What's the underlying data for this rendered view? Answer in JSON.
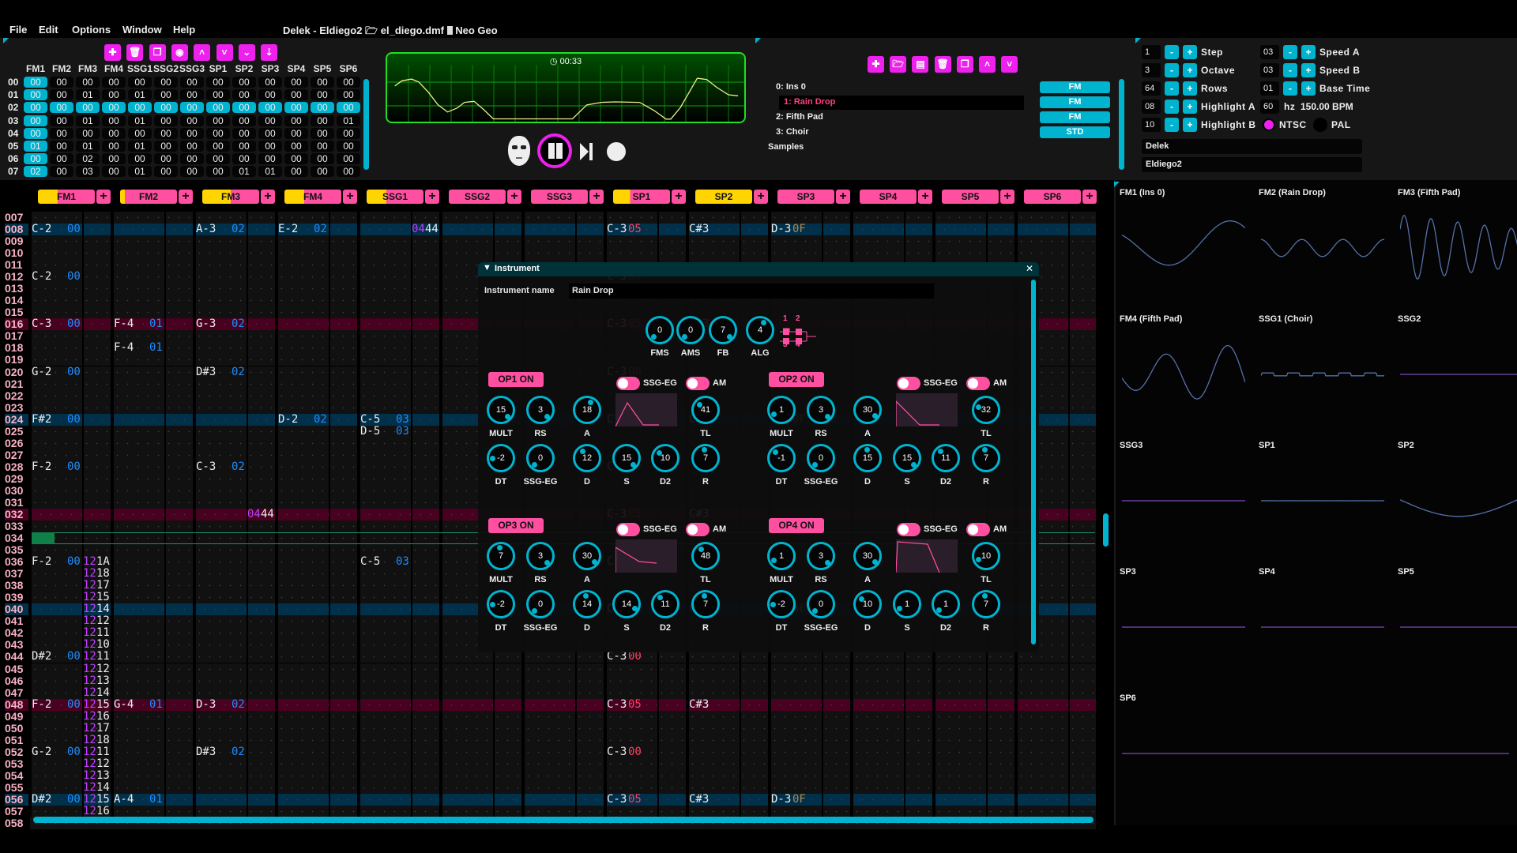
{
  "menu": [
    "File",
    "Edit",
    "Options",
    "Window",
    "Help"
  ],
  "window_title": {
    "song": "Delek - Eldiego2",
    "file": "el_diego.dmf",
    "system": "Neo Geo"
  },
  "colors": {
    "accent": "#00b4d0",
    "magenta": "#ee20ee",
    "pink": "#ff4fa0",
    "highlight_a": "#00304a",
    "highlight_b": "#4a0020",
    "scope_green": "#22dd22"
  },
  "orders": {
    "toolbar_icons": [
      "add-icon",
      "delete-icon",
      "duplicate-icon",
      "place-icon",
      "move-up-icon",
      "move-down-icon",
      "move-down-fast-icon",
      "sort-icon"
    ],
    "channels": [
      "FM1",
      "FM2",
      "FM3",
      "FM4",
      "SSG1",
      "SSG2",
      "SSG3",
      "SP1",
      "SP2",
      "SP3",
      "SP4",
      "SP5",
      "SP6"
    ],
    "rows": [
      {
        "num": "00",
        "values": [
          "00",
          "00",
          "00",
          "00",
          "00",
          "00",
          "00",
          "00",
          "00",
          "00",
          "00",
          "00",
          "00"
        ]
      },
      {
        "num": "01",
        "values": [
          "00",
          "00",
          "01",
          "00",
          "01",
          "00",
          "00",
          "00",
          "00",
          "00",
          "00",
          "00",
          "00"
        ]
      },
      {
        "num": "02",
        "values": [
          "00",
          "00",
          "00",
          "00",
          "00",
          "00",
          "00",
          "00",
          "00",
          "00",
          "00",
          "00",
          "00"
        ]
      },
      {
        "num": "03",
        "values": [
          "00",
          "00",
          "01",
          "00",
          "01",
          "00",
          "00",
          "00",
          "00",
          "00",
          "00",
          "00",
          "01"
        ]
      },
      {
        "num": "04",
        "values": [
          "00",
          "00",
          "00",
          "00",
          "00",
          "00",
          "00",
          "00",
          "00",
          "00",
          "00",
          "00",
          "00"
        ]
      },
      {
        "num": "05",
        "values": [
          "01",
          "00",
          "01",
          "00",
          "01",
          "00",
          "00",
          "00",
          "00",
          "00",
          "00",
          "00",
          "00"
        ]
      },
      {
        "num": "06",
        "values": [
          "00",
          "00",
          "02",
          "00",
          "00",
          "00",
          "00",
          "00",
          "00",
          "00",
          "00",
          "00",
          "00"
        ]
      },
      {
        "num": "07",
        "values": [
          "02",
          "00",
          "03",
          "00",
          "01",
          "00",
          "00",
          "00",
          "01",
          "01",
          "00",
          "00",
          "00"
        ]
      }
    ],
    "current_row": "02"
  },
  "scope": {
    "timer": "00:33"
  },
  "transport": {
    "icons": [
      "mask-icon",
      "pause-icon",
      "step-icon",
      "record-icon"
    ]
  },
  "instruments": {
    "toolbar_icons": [
      "add-icon",
      "open-icon",
      "save-icon",
      "delete-icon",
      "duplicate-icon",
      "move-up-icon",
      "move-down-icon"
    ],
    "items": [
      {
        "label": "0: Ins 0",
        "type": "FM"
      },
      {
        "label": "1: Rain Drop",
        "type": "FM",
        "selected": true
      },
      {
        "label": "2: Fifth Pad",
        "type": "FM"
      },
      {
        "label": "3: Choir",
        "type": "STD"
      }
    ],
    "samples_label": "Samples"
  },
  "settings": {
    "left": [
      {
        "value": "1",
        "label": "Step"
      },
      {
        "value": "3",
        "label": "Octave"
      },
      {
        "value": "64",
        "label": "Rows"
      },
      {
        "value": "08",
        "label": "Highlight A"
      },
      {
        "value": "10",
        "label": "Highlight B"
      }
    ],
    "right": [
      {
        "value": "03",
        "label": "Speed A"
      },
      {
        "value": "03",
        "label": "Speed B"
      },
      {
        "value": "01",
        "label": "Base Time"
      }
    ],
    "hz_value": "60",
    "hz_label": "hz",
    "bpm": "150.00 BPM",
    "ntsc": "NTSC",
    "pal": "PAL",
    "region_selected": "NTSC",
    "author": "Delek",
    "song_name": "Eldiego2",
    "minus": "-",
    "plus": "+"
  },
  "pattern": {
    "channels": [
      "FM1",
      "FM2",
      "FM3",
      "FM4",
      "SSG1",
      "SSG2",
      "SSG3",
      "SP1",
      "SP2",
      "SP3",
      "SP4",
      "SP5",
      "SP6"
    ],
    "add_label": "+",
    "rows": [
      "007",
      "008",
      "009",
      "010",
      "011",
      "012",
      "013",
      "014",
      "015",
      "016",
      "017",
      "018",
      "019",
      "020",
      "021",
      "022",
      "023",
      "024",
      "025",
      "026",
      "027",
      "028",
      "029",
      "030",
      "031",
      "032",
      "033",
      "034",
      "035",
      "036",
      "037",
      "038",
      "039",
      "040",
      "041",
      "042",
      "043",
      "044",
      "045",
      "046",
      "047",
      "048",
      "049",
      "050",
      "051",
      "052",
      "053",
      "054",
      "055",
      "056",
      "057",
      "058"
    ],
    "cursor_row": "034",
    "entries": [
      {
        "row": "008",
        "ch": "FM1",
        "note": "C-2",
        "ins": "00"
      },
      {
        "row": "008",
        "ch": "FM3",
        "note": "A-3",
        "ins": "02"
      },
      {
        "row": "008",
        "ch": "FM4",
        "note": "E-2",
        "ins": "02"
      },
      {
        "row": "008",
        "ch": "SSG1",
        "fx": {
          "cmd": "04",
          "val": "44"
        }
      },
      {
        "row": "008",
        "ch": "SP1",
        "note": "C-3",
        "vol": "05"
      },
      {
        "row": "008",
        "ch": "SP2",
        "note": "C#3"
      },
      {
        "row": "008",
        "ch": "SP3",
        "note": "D-3",
        "vol": "0F"
      },
      {
        "row": "012",
        "ch": "FM1",
        "note": "C-2",
        "ins": "00"
      },
      {
        "row": "012",
        "ch": "SP1",
        "note": "C-3",
        "vol": "00"
      },
      {
        "row": "016",
        "ch": "FM1",
        "note": "C-3",
        "ins": "00"
      },
      {
        "row": "016",
        "ch": "FM2",
        "note": "F-4",
        "ins": "01"
      },
      {
        "row": "016",
        "ch": "FM3",
        "note": "G-3",
        "ins": "02"
      },
      {
        "row": "016",
        "ch": "SP1",
        "note": "C-3",
        "vol": "05"
      },
      {
        "row": "016",
        "ch": "SP2",
        "note": "C#3"
      },
      {
        "row": "018",
        "ch": "FM2",
        "note": "F-4",
        "ins": "01"
      },
      {
        "row": "020",
        "ch": "FM1",
        "note": "G-2",
        "ins": "00"
      },
      {
        "row": "020",
        "ch": "FM3",
        "note": "D#3",
        "ins": "02"
      },
      {
        "row": "020",
        "ch": "SP1",
        "note": "C-3",
        "vol": "00"
      },
      {
        "row": "024",
        "ch": "FM1",
        "note": "F#2",
        "ins": "00"
      },
      {
        "row": "024",
        "ch": "FM4",
        "note": "D-2",
        "ins": "02"
      },
      {
        "row": "024",
        "ch": "SSG1",
        "note": "C-5",
        "ins": "03"
      },
      {
        "row": "024",
        "ch": "SP1",
        "note": "C-3",
        "vol": "05"
      },
      {
        "row": "024",
        "ch": "SP2",
        "note": "C#3"
      },
      {
        "row": "024",
        "ch": "SP3",
        "note": "D-3",
        "vol": "0F"
      },
      {
        "row": "025",
        "ch": "SSG1",
        "note": "D-5",
        "ins": "03"
      },
      {
        "row": "028",
        "ch": "FM1",
        "note": "F-2",
        "ins": "00"
      },
      {
        "row": "028",
        "ch": "FM3",
        "note": "C-3",
        "ins": "02"
      },
      {
        "row": "028",
        "ch": "SP1",
        "note": "C-3",
        "vol": "00"
      },
      {
        "row": "032",
        "ch": "FM3",
        "fx": {
          "cmd": "04",
          "val": "44"
        }
      },
      {
        "row": "032",
        "ch": "SP1",
        "note": "C-3",
        "vol": "05"
      },
      {
        "row": "032",
        "ch": "SP2",
        "note": "C#3"
      },
      {
        "row": "036",
        "ch": "FM1",
        "note": "F-2",
        "ins": "00",
        "fx": {
          "cmd": "12",
          "val": "1A"
        }
      },
      {
        "row": "036",
        "ch": "SSG1",
        "note": "C-5",
        "ins": "03"
      },
      {
        "row": "036",
        "ch": "SP1",
        "note": "C-3",
        "vol": "00"
      },
      {
        "row": "037",
        "ch": "FM1",
        "fx": {
          "cmd": "12",
          "val": "18"
        }
      },
      {
        "row": "038",
        "ch": "FM1",
        "fx": {
          "cmd": "12",
          "val": "17"
        }
      },
      {
        "row": "039",
        "ch": "FM1",
        "fx": {
          "cmd": "12",
          "val": "15"
        }
      },
      {
        "row": "040",
        "ch": "FM1",
        "fx": {
          "cmd": "12",
          "val": "14"
        }
      },
      {
        "row": "040",
        "ch": "SP1",
        "note": "C-3",
        "vol": "05"
      },
      {
        "row": "040",
        "ch": "SP2",
        "note": "C#3"
      },
      {
        "row": "040",
        "ch": "SP3",
        "note": "D-3",
        "vol": "0F"
      },
      {
        "row": "041",
        "ch": "FM1",
        "fx": {
          "cmd": "12",
          "val": "12"
        }
      },
      {
        "row": "042",
        "ch": "FM1",
        "fx": {
          "cmd": "12",
          "val": "11"
        }
      },
      {
        "row": "043",
        "ch": "FM1",
        "fx": {
          "cmd": "12",
          "val": "10"
        }
      },
      {
        "row": "044",
        "ch": "FM1",
        "note": "D#2",
        "ins": "00",
        "fx": {
          "cmd": "12",
          "val": "11"
        }
      },
      {
        "row": "044",
        "ch": "SP1",
        "note": "C-3",
        "vol": "00"
      },
      {
        "row": "045",
        "ch": "FM1",
        "fx": {
          "cmd": "12",
          "val": "12"
        }
      },
      {
        "row": "046",
        "ch": "FM1",
        "fx": {
          "cmd": "12",
          "val": "13"
        }
      },
      {
        "row": "047",
        "ch": "FM1",
        "fx": {
          "cmd": "12",
          "val": "14"
        }
      },
      {
        "row": "048",
        "ch": "FM1",
        "note": "F-2",
        "ins": "00",
        "fx": {
          "cmd": "12",
          "val": "15"
        }
      },
      {
        "row": "048",
        "ch": "FM2",
        "note": "G-4",
        "ins": "01"
      },
      {
        "row": "048",
        "ch": "FM3",
        "note": "D-3",
        "ins": "02"
      },
      {
        "row": "048",
        "ch": "SP1",
        "note": "C-3",
        "vol": "05"
      },
      {
        "row": "048",
        "ch": "SP2",
        "note": "C#3"
      },
      {
        "row": "049",
        "ch": "FM1",
        "fx": {
          "cmd": "12",
          "val": "16"
        }
      },
      {
        "row": "050",
        "ch": "FM1",
        "fx": {
          "cmd": "12",
          "val": "17"
        }
      },
      {
        "row": "051",
        "ch": "FM1",
        "fx": {
          "cmd": "12",
          "val": "18"
        }
      },
      {
        "row": "052",
        "ch": "FM1",
        "note": "G-2",
        "ins": "00",
        "fx": {
          "cmd": "12",
          "val": "11"
        }
      },
      {
        "row": "052",
        "ch": "FM3",
        "note": "D#3",
        "ins": "02"
      },
      {
        "row": "052",
        "ch": "SP1",
        "note": "C-3",
        "vol": "00"
      },
      {
        "row": "053",
        "ch": "FM1",
        "fx": {
          "cmd": "12",
          "val": "12"
        }
      },
      {
        "row": "054",
        "ch": "FM1",
        "fx": {
          "cmd": "12",
          "val": "13"
        }
      },
      {
        "row": "055",
        "ch": "FM1",
        "fx": {
          "cmd": "12",
          "val": "14"
        }
      },
      {
        "row": "056",
        "ch": "FM1",
        "note": "D#2",
        "ins": "00",
        "fx": {
          "cmd": "12",
          "val": "15"
        }
      },
      {
        "row": "056",
        "ch": "FM2",
        "note": "A-4",
        "ins": "01"
      },
      {
        "row": "056",
        "ch": "SP1",
        "note": "C-3",
        "vol": "05"
      },
      {
        "row": "056",
        "ch": "SP2",
        "note": "C#3"
      },
      {
        "row": "056",
        "ch": "SP3",
        "note": "D-3",
        "vol": "0F"
      },
      {
        "row": "057",
        "ch": "FM1",
        "fx": {
          "cmd": "12",
          "val": "16"
        }
      }
    ]
  },
  "instrument_editor": {
    "title": "Instrument",
    "name_label": "Instrument name",
    "name_value": "Rain Drop",
    "globals": [
      {
        "label": "FMS",
        "value": 0
      },
      {
        "label": "AMS",
        "value": 0
      },
      {
        "label": "FB",
        "value": 7
      },
      {
        "label": "ALG",
        "value": 4
      }
    ],
    "alg_ops": [
      "1",
      "2",
      "3",
      "4"
    ],
    "ssg_eg_label": "SSG-EG",
    "am_label": "AM",
    "ops": [
      {
        "button": "OP1 ON",
        "ssg_eg_on": false,
        "am_on": false,
        "knobs": [
          {
            "label": "MULT",
            "value": 15
          },
          {
            "label": "RS",
            "value": 3
          },
          {
            "label": "A",
            "value": 18
          },
          {
            "label": "TL",
            "value": 41
          },
          {
            "label": "DT",
            "value": -2
          },
          {
            "label": "SSG-EG",
            "value": 0
          },
          {
            "label": "D",
            "value": 12
          },
          {
            "label": "S",
            "value": 15
          },
          {
            "label": "D2",
            "value": 10
          },
          {
            "label": "R",
            "value": 7
          }
        ]
      },
      {
        "button": "OP2 ON",
        "ssg_eg_on": false,
        "am_on": false,
        "knobs": [
          {
            "label": "MULT",
            "value": 1
          },
          {
            "label": "RS",
            "value": 3
          },
          {
            "label": "A",
            "value": 30
          },
          {
            "label": "TL",
            "value": 32
          },
          {
            "label": "DT",
            "value": -1
          },
          {
            "label": "SSG-EG",
            "value": 0
          },
          {
            "label": "D",
            "value": 15
          },
          {
            "label": "S",
            "value": 15
          },
          {
            "label": "D2",
            "value": 11
          },
          {
            "label": "R",
            "value": 7
          }
        ]
      },
      {
        "button": "OP3 ON",
        "ssg_eg_on": false,
        "am_on": false,
        "knobs": [
          {
            "label": "MULT",
            "value": 7
          },
          {
            "label": "RS",
            "value": 3
          },
          {
            "label": "A",
            "value": 30
          },
          {
            "label": "TL",
            "value": 48
          },
          {
            "label": "DT",
            "value": -2
          },
          {
            "label": "SSG-EG",
            "value": 0
          },
          {
            "label": "D",
            "value": 14
          },
          {
            "label": "S",
            "value": 14
          },
          {
            "label": "D2",
            "value": 11
          },
          {
            "label": "R",
            "value": 7
          }
        ]
      },
      {
        "button": "OP4 ON",
        "ssg_eg_on": false,
        "am_on": false,
        "knobs": [
          {
            "label": "MULT",
            "value": 1
          },
          {
            "label": "RS",
            "value": 3
          },
          {
            "label": "A",
            "value": 30
          },
          {
            "label": "TL",
            "value": 10
          },
          {
            "label": "DT",
            "value": -2
          },
          {
            "label": "SSG-EG",
            "value": 0
          },
          {
            "label": "D",
            "value": 10
          },
          {
            "label": "S",
            "value": 1
          },
          {
            "label": "D2",
            "value": 1
          },
          {
            "label": "R",
            "value": 7
          }
        ]
      }
    ]
  },
  "channel_scopes": [
    "FM1 (Ins 0)",
    "FM2 (Rain Drop)",
    "FM3 (Fifth Pad)",
    "FM4 (Fifth Pad)",
    "SSG1 (Choir)",
    "SSG2",
    "SSG3",
    "SP1",
    "SP2",
    "SP3",
    "SP4",
    "SP5",
    "SP6"
  ]
}
